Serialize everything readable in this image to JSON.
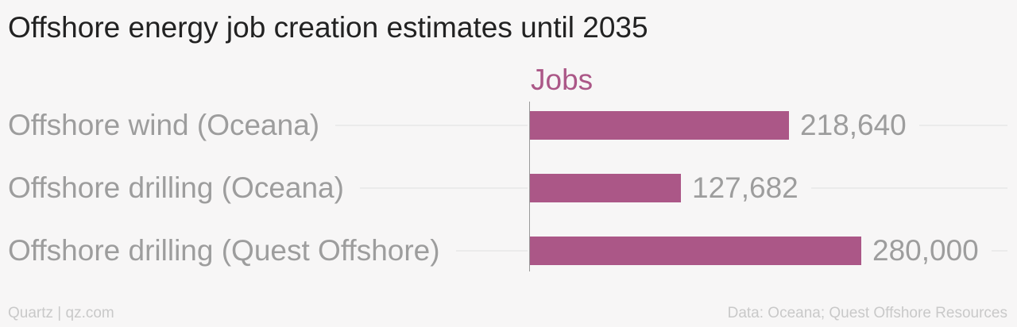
{
  "title": "Offshore energy job creation estimates until 2035",
  "footer": {
    "left": "Quartz | qz.com",
    "right": "Data: Oceana; Quest Offshore Resources"
  },
  "colors": {
    "bar": "#ab5787"
  },
  "chart_data": {
    "type": "bar",
    "orientation": "horizontal",
    "title": "Offshore energy job creation estimates until 2035",
    "xlabel": "",
    "ylabel": "",
    "grid": false,
    "series": [
      {
        "name": "Jobs",
        "values": [
          218640,
          127682,
          280000
        ],
        "value_labels": [
          "218,640",
          "127,682",
          "280,000"
        ]
      }
    ],
    "categories": [
      "Offshore wind (Oceana)",
      "Offshore drilling (Oceana)",
      "Offshore drilling (Quest Offshore)"
    ],
    "xlim": [
      0,
      280000
    ]
  }
}
